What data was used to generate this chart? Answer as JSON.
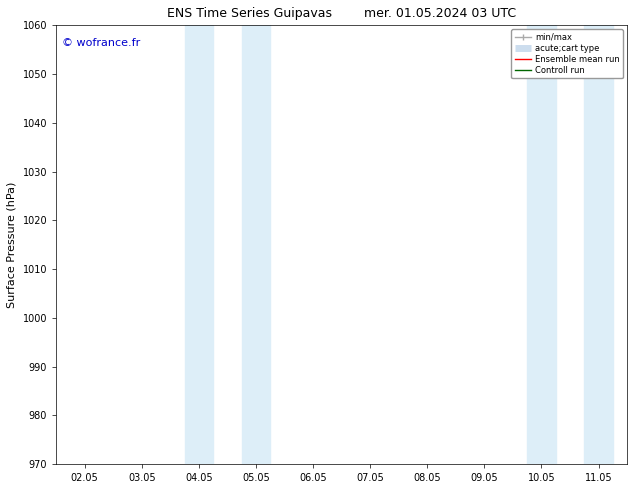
{
  "title_left": "ENS Time Series Guipavas",
  "title_right": "mer. 01.05.2024 03 UTC",
  "ylabel": "Surface Pressure (hPa)",
  "ylim": [
    970,
    1060
  ],
  "yticks": [
    970,
    980,
    990,
    1000,
    1010,
    1020,
    1030,
    1040,
    1050,
    1060
  ],
  "xtick_labels": [
    "02.05",
    "03.05",
    "04.05",
    "05.05",
    "06.05",
    "07.05",
    "08.05",
    "09.05",
    "10.05",
    "11.05"
  ],
  "xtick_positions": [
    0,
    1,
    2,
    3,
    4,
    5,
    6,
    7,
    8,
    9
  ],
  "xlim": [
    -0.5,
    9.5
  ],
  "shaded_regions": [
    {
      "xmin": 2.0,
      "xmax": 2.5,
      "color": "#ddeef8"
    },
    {
      "xmin": 2.5,
      "xmax": 3.5,
      "color": "#ddeef8"
    },
    {
      "xmin": 7.5,
      "xmax": 8.5,
      "color": "#ddeef8"
    },
    {
      "xmin": 8.5,
      "xmax": 9.0,
      "color": "#ddeef8"
    }
  ],
  "watermark_text": "© wofrance.fr",
  "watermark_color": "#0000cc",
  "background_color": "#ffffff",
  "plot_bg_color": "#ffffff",
  "legend_items": [
    {
      "label": "min/max",
      "color": "#aaaaaa",
      "lw": 1.0
    },
    {
      "label": "acute;cart type",
      "color": "#ccddee",
      "lw": 5
    },
    {
      "label": "Ensemble mean run",
      "color": "#ff0000",
      "lw": 1.0
    },
    {
      "label": "Controll run",
      "color": "#006600",
      "lw": 1.0
    }
  ],
  "title_fontsize": 9,
  "tick_fontsize": 7,
  "ylabel_fontsize": 8,
  "watermark_fontsize": 8
}
